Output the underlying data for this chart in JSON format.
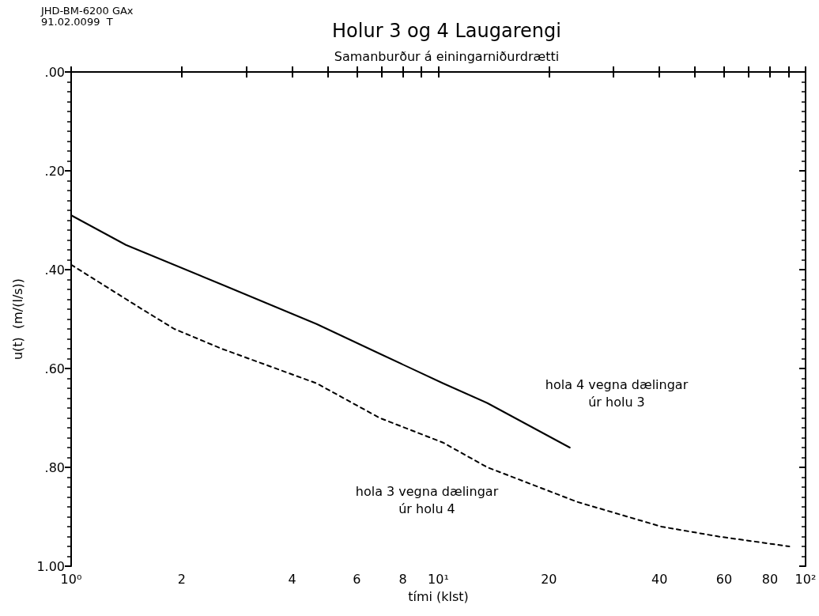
{
  "chart_data": {
    "type": "line",
    "title": "Holur 3 og 4 Laugarengi",
    "subtitle": "Samanburður á einingarniðurdrætti",
    "xlabel": "tími (klst)",
    "ylabel": "u(t)  (m/(l/s))",
    "annotations": [
      "JHD-BM-6200 GAx\n91.02.0099  T",
      "hola 4 vegna dælingar\núr holu 3",
      "hola 3 vegna dælingar\núr holu 4"
    ],
    "series": [
      {
        "color": "#000000",
        "line_style": "solid",
        "x": [
          1,
          1.41,
          2.57,
          4.66,
          6.92,
          10.3,
          13.6,
          22.8
        ],
        "values": [
          0.29,
          0.35,
          0.43,
          0.51,
          0.57,
          0.63,
          0.67,
          0.76
        ]
      },
      {
        "color": "#000000",
        "line_style": "dashed",
        "x": [
          1,
          1.56,
          1.91,
          2.57,
          4.66,
          6.92,
          10.3,
          13.6,
          23.9,
          40.5,
          58,
          90.3
        ],
        "values": [
          0.39,
          0.48,
          0.52,
          0.56,
          0.63,
          0.7,
          0.75,
          0.8,
          0.87,
          0.92,
          0.94,
          0.96
        ]
      }
    ],
    "log": "x",
    "xlim": [
      1,
      100
    ],
    "xticks": [
      {
        "value": 1,
        "label": "10⁰"
      },
      2,
      {
        "value": 3,
        "label": null
      },
      4,
      {
        "value": 5,
        "label": null
      },
      6,
      {
        "value": 7,
        "label": null
      },
      8,
      {
        "value": 9,
        "label": null
      },
      {
        "value": 10,
        "label": "10¹"
      },
      20,
      {
        "value": 30,
        "label": null
      },
      40,
      {
        "value": 50,
        "label": null
      },
      60,
      {
        "value": 70,
        "label": null
      },
      80,
      {
        "value": 90,
        "label": null
      },
      {
        "value": 100,
        "label": "10²"
      }
    ],
    "ylim": [
      1,
      0
    ],
    "yticks": [
      {
        "value": 0,
        "label": ".00"
      },
      {
        "value": 0.2,
        "label": ".20"
      },
      {
        "value": 0.4,
        "label": ".40"
      },
      {
        "value": 0.6,
        "label": ".60"
      },
      {
        "value": 0.8,
        "label": ".80"
      },
      {
        "value": 1,
        "label": "1.00"
      }
    ],
    "marker": "none"
  }
}
